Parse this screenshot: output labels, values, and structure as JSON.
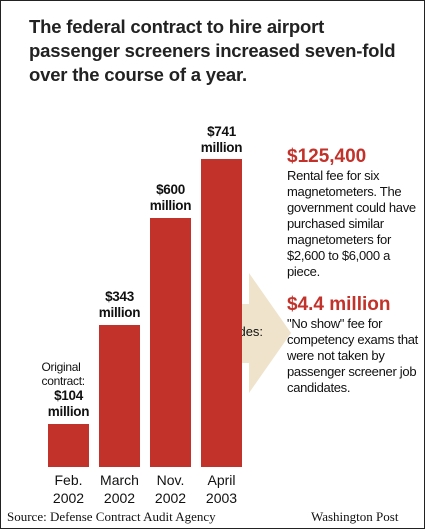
{
  "chart_data": {
    "type": "bar",
    "title": "The federal contract to hire airport passenger screeners increased seven-fold over the course of a year.",
    "categories": [
      "Feb. 2002",
      "March 2002",
      "Nov. 2002",
      "April 2003"
    ],
    "values": [
      104,
      343,
      600,
      741
    ],
    "value_labels": [
      "$104 million",
      "$343 million",
      "$600 million",
      "$741 million"
    ],
    "color": "#c2322a",
    "ylim": [
      0,
      800
    ],
    "bar_annotation": "Original contract:",
    "includes_label": "Includes:",
    "notes": [
      {
        "heading": "$125,400",
        "text": "Rental fee for six magnetometers. The government could have purchased similar magnetometers for $2,600 to $6,000 a piece."
      },
      {
        "heading": "$4.4 million",
        "text": "\"No show\" fee for competency exams that were not taken by passenger screener job candidates."
      }
    ],
    "source": "Source: Defense Contract Audit Agency",
    "credit": "Washington Post"
  }
}
